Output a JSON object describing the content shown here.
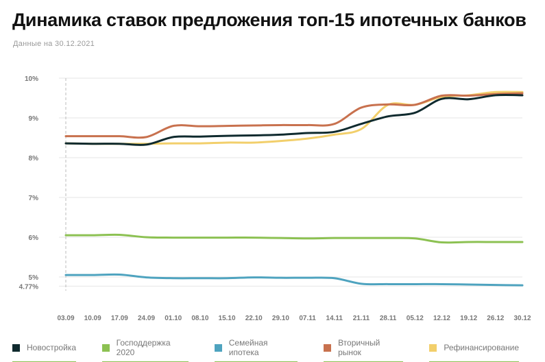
{
  "title": "Динамика ставок предложения топ-15 ипотечных банков",
  "subtitle": "Данные на 30.12.2021",
  "chart_data": {
    "type": "line",
    "title": "Динамика ставок предложения топ-15 ипотечных банков",
    "xlabel": "",
    "ylabel": "",
    "ylim": [
      4.77,
      10
    ],
    "y_ticks": [
      "10%",
      "9%",
      "8%",
      "7%",
      "6%",
      "5%",
      "4.77%"
    ],
    "y_tick_values": [
      10,
      9,
      8,
      7,
      6,
      5,
      4.77
    ],
    "grid": true,
    "legend_position": "bottom",
    "categories": [
      "03.09",
      "10.09",
      "17.09",
      "24.09",
      "01.10",
      "08.10",
      "15.10",
      "22.10",
      "29.10",
      "07.11",
      "14.11",
      "21.11",
      "28.11",
      "05.12",
      "12.12",
      "19.12",
      "26.12",
      "30.12"
    ],
    "series": [
      {
        "name": "Новостройка",
        "color": "#0f2a2e",
        "values": [
          8.36,
          8.35,
          8.35,
          8.33,
          8.52,
          8.53,
          8.55,
          8.56,
          8.58,
          8.62,
          8.65,
          8.85,
          9.04,
          9.13,
          9.48,
          9.47,
          9.57,
          9.57
        ]
      },
      {
        "name": "Господдержка 2020",
        "color": "#8cc152",
        "values": [
          6.05,
          6.05,
          6.06,
          6.0,
          5.99,
          5.99,
          5.99,
          5.99,
          5.98,
          5.97,
          5.98,
          5.98,
          5.98,
          5.97,
          5.87,
          5.88,
          5.88,
          5.88
        ]
      },
      {
        "name": "Семейная ипотека",
        "color": "#4ea3bf",
        "values": [
          5.05,
          5.05,
          5.06,
          4.99,
          4.97,
          4.97,
          4.97,
          4.99,
          4.98,
          4.98,
          4.97,
          4.83,
          4.82,
          4.82,
          4.82,
          4.81,
          4.8,
          4.79
        ]
      },
      {
        "name": "Вторичный рынок",
        "color": "#c8714e",
        "values": [
          8.54,
          8.54,
          8.54,
          8.52,
          8.8,
          8.79,
          8.8,
          8.81,
          8.82,
          8.82,
          8.85,
          9.26,
          9.34,
          9.33,
          9.56,
          9.56,
          9.6,
          9.62
        ]
      },
      {
        "name": "Рефинансирование",
        "color": "#f2cf6b",
        "values": [
          8.36,
          8.35,
          8.35,
          8.35,
          8.36,
          8.36,
          8.38,
          8.38,
          8.42,
          8.48,
          8.58,
          8.72,
          9.33,
          9.33,
          9.53,
          9.57,
          9.65,
          9.65
        ]
      }
    ]
  }
}
